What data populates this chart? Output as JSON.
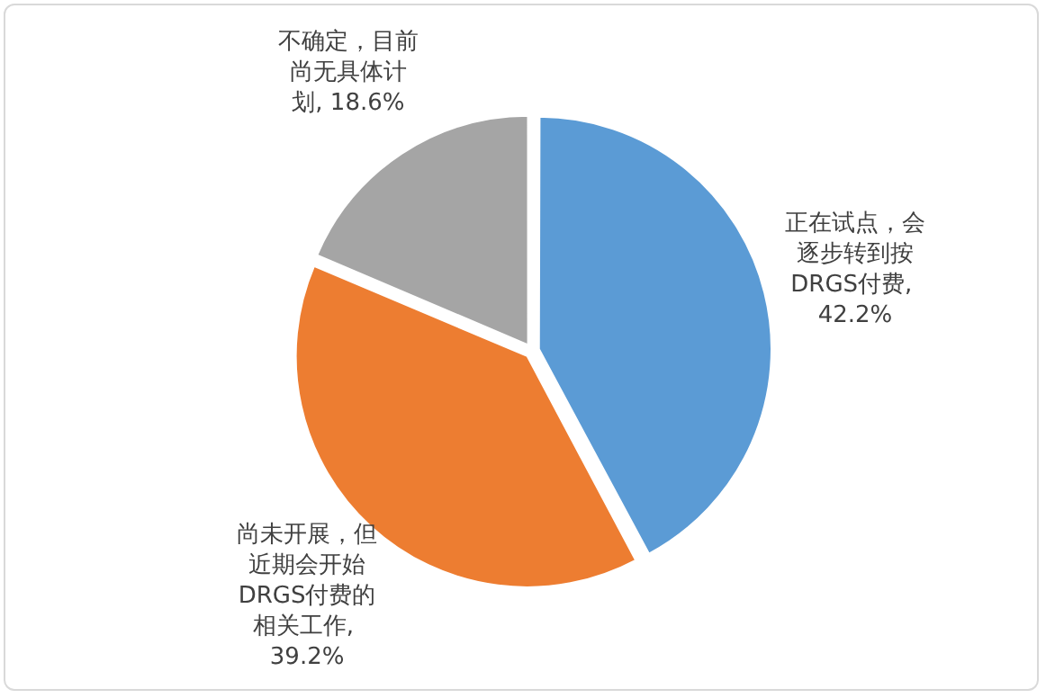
{
  "chart_data": {
    "type": "pie",
    "categories": [
      "正在试点，会逐步转到按DRGS付费",
      "尚未开展，但近期会开始DRGS付费的相关工作",
      "不确定，目前尚无具体计划"
    ],
    "value_labels": [
      ", 42.2%",
      ", 39.2%",
      ", 18.6%"
    ],
    "values": [
      42.2,
      39.2,
      18.6
    ],
    "colors": [
      "#5b9bd5",
      "#ed7d31",
      "#a5a5a5"
    ],
    "data_labels": true,
    "legend": false
  }
}
